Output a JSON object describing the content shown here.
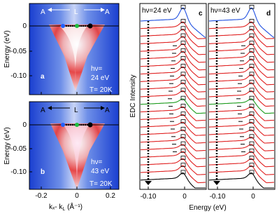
{
  "panels": [
    {
      "letter": "a",
      "top_labels": [
        "A",
        "L",
        "A"
      ],
      "photon": [
        "hν=",
        "24 eV"
      ],
      "temp": "T= 20K"
    },
    {
      "letter": "b",
      "top_labels": [
        "A",
        "L",
        "A"
      ],
      "photon": [
        "hν=",
        "43 eV"
      ],
      "temp": "T= 20K"
    },
    {
      "letter": "c",
      "photon": "hν=24 eV"
    },
    {
      "letter": "d",
      "photon": "hν=43 eV"
    }
  ],
  "map_axes": {
    "y_label": "Energy (eV)",
    "x_label": "kₓ- k",
    "x_label_sub": "L",
    "x_label_unit": " (Å⁻¹)",
    "x_ticks": [
      "-0.2",
      "0",
      "0.2"
    ],
    "y_ticks": [
      "0",
      "-0.05",
      "-0.10"
    ]
  },
  "edc_axes": {
    "y_label": "EDC Intensity",
    "x_label": "Energy (eV)",
    "x_ticks": [
      "-0.10",
      "0"
    ]
  }
}
